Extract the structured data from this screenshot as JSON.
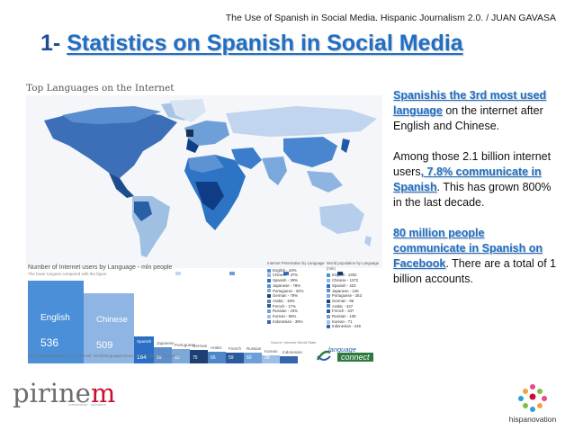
{
  "header": {
    "line": "The Use of Spanish in Social Media. Hispanic Journalism 2.0. /  JUAN GAVASA"
  },
  "title": {
    "number": "1-",
    "text": "Statistics on Spanish in Social Media"
  },
  "infographic": {
    "map_title": "Top Languages on the Internet",
    "users_title": "Number of Internet users by Language - mln people",
    "users_subtitle": "The lower tongues compared with the figure",
    "footer": "Web:  languageconnect.net   •  E-mail: info@languageconnect.net   •  Follow us: connect",
    "source": "Source: Internet World Stats",
    "panel_left": {
      "heading": "Internet Penetration by Language",
      "items": [
        "English - 43%",
        "Chinese - 37%",
        "Spanish - 39%",
        "Japanese - 78%",
        "Portuguese - 32%",
        "German - 79%",
        "Arabic - 18%",
        "French - 17%",
        "Russian - 43%",
        "Korean - 55%",
        "Indonesian - 39%"
      ]
    },
    "panel_right": {
      "heading": "World population by Language (mln)",
      "items": [
        "English - 1302",
        "Chinese - 1372",
        "Spanish - 423",
        "Japanese - 126",
        "Portuguese - 253",
        "German - 96",
        "Arabic - 347",
        "French - 347",
        "Russian - 139",
        "Korean - 71",
        "Indonesian - 246"
      ]
    },
    "bars": [
      {
        "name": "English",
        "value": "536"
      },
      {
        "name": "Chinese",
        "value": "509"
      },
      {
        "name": "Spanish",
        "value": "164"
      },
      {
        "name": "Japanese",
        "value": "99"
      },
      {
        "name": "Portuguese",
        "value": "83"
      },
      {
        "name": "German",
        "value": "75"
      },
      {
        "name": "Arabic",
        "value": "65"
      },
      {
        "name": "French",
        "value": "59"
      },
      {
        "name": "Russian",
        "value": "60"
      },
      {
        "name": "Korean",
        "value": "39"
      },
      {
        "name": "Indonesian",
        "value": ""
      }
    ],
    "logo": {
      "line1": "language",
      "line2": "connect"
    }
  },
  "right_text": {
    "p1_highlight": "Spanishis the 3rd most used language",
    "p1_rest": " on the internet after English and Chinese.",
    "p2_start": "Among those 2.1 billion internet users",
    "p2_highlight": ", 7.8% communicate in Spanish",
    "p2_rest": ". This has grown 800% in the last decade.",
    "p3_highlight": "80 million people communicate in Spanish on Facebook",
    "p3_rest": ".  There are a total of 1 billion accounts."
  },
  "footer": {
    "pirineum_pre": "pirine",
    "pirineum_m": "m",
    "pirineum_sub": "comunicación · consultoría",
    "hispanovation": "hispanovation"
  },
  "colors": {
    "title_blue": "#1f6fc7",
    "title_dark": "#1f4e96",
    "bar_blue": "#4a8fd8",
    "pirineum_red": "#c8102e"
  }
}
